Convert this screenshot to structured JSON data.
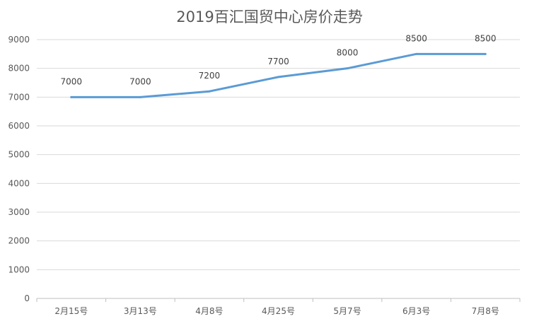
{
  "chart_data": {
    "type": "line",
    "title": "2019百汇国贸中心房价走势",
    "categories": [
      "2月15号",
      "3月13号",
      "4月8号",
      "4月25号",
      "5月7号",
      "6月3号",
      "7月8号"
    ],
    "series": [
      {
        "values": [
          7000,
          7000,
          7200,
          7700,
          8000,
          8500,
          8500
        ],
        "data_labels": [
          "7000",
          "7000",
          "7200",
          "7700",
          "8000",
          "8500",
          "8500"
        ]
      }
    ],
    "y_ticks": [
      "0",
      "1000",
      "2000",
      "3000",
      "4000",
      "5000",
      "6000",
      "7000",
      "8000",
      "9000"
    ],
    "ylim": [
      0,
      9000
    ],
    "xlabel": "",
    "ylabel": "",
    "grid": true,
    "legend": "none",
    "line_color": "#5b9bd5",
    "grid_color": "#d9d9d9",
    "axis_color": "#bfbfbf",
    "text_color": "#595959",
    "title_color": "#595959"
  }
}
